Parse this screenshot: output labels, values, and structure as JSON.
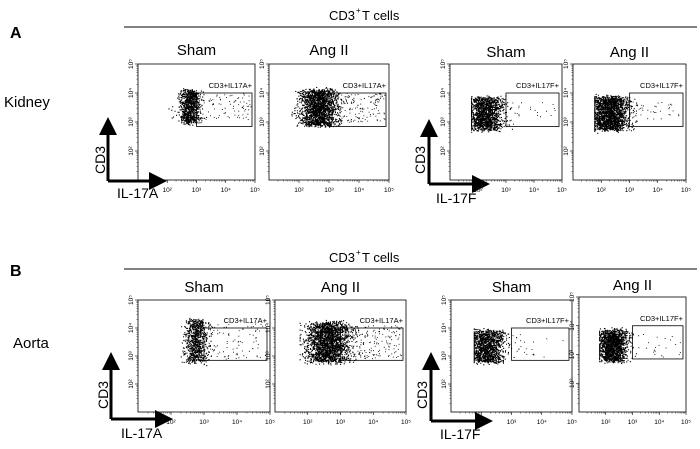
{
  "figure": {
    "panels": [
      {
        "letter": "A",
        "header": "CD3",
        "header_sup": "+",
        "header_tail": " T cells",
        "tissue": "Kidney",
        "cd3_label_a": "CD3",
        "cd3_label_f": "CD3",
        "x_label_a": "IL-17A",
        "x_label_f": "IL-17F"
      },
      {
        "letter": "B",
        "header": "CD3",
        "header_sup": "+",
        "header_tail": " T cells",
        "tissue": "Aorta",
        "cd3_label_a": "CD3",
        "cd3_label_f": "CD3",
        "x_label_a": "IL-17A",
        "x_label_f": "IL-17F"
      }
    ]
  },
  "chart_data": [
    {
      "type": "scatter",
      "panel": "A",
      "tissue": "Kidney",
      "title": "Sham",
      "gate_label": "CD3+IL17A+",
      "xlabel": "IL-17A",
      "ylabel": "CD3",
      "x_axis": "log",
      "y_axis": "log",
      "xlim": [
        10,
        100000
      ],
      "ylim": [
        10,
        100000
      ],
      "x_ticks": [
        "10²",
        "10³",
        "10⁴",
        "10⁵"
      ],
      "y_ticks": [
        "10⁵",
        "10⁴",
        "10³",
        "10²"
      ],
      "gate_x": [
        1000,
        100000
      ],
      "gate_y": [
        700,
        10000
      ]
    },
    {
      "type": "scatter",
      "panel": "A",
      "tissue": "Kidney",
      "title": "Ang II",
      "gate_label": "CD3+IL17A+",
      "xlabel": "IL-17A",
      "ylabel": "CD3",
      "x_axis": "log",
      "y_axis": "log",
      "xlim": [
        10,
        100000
      ],
      "ylim": [
        10,
        100000
      ],
      "x_ticks": [
        "10²",
        "10³",
        "10⁴",
        "10⁵"
      ],
      "y_ticks": [
        "10⁵",
        "10⁴",
        "10³",
        "10²"
      ],
      "gate_x": [
        1000,
        100000
      ],
      "gate_y": [
        700,
        10000
      ]
    },
    {
      "type": "scatter",
      "panel": "A",
      "tissue": "Kidney",
      "title": "Sham",
      "gate_label": "CD3+IL17F+",
      "xlabel": "IL-17F",
      "ylabel": "CD3",
      "x_axis": "log",
      "y_axis": "log",
      "xlim": [
        10,
        100000
      ],
      "ylim": [
        10,
        100000
      ],
      "x_ticks": [
        "10²",
        "10³",
        "10⁴",
        "10⁵"
      ],
      "y_ticks": [
        "10⁵",
        "10⁴",
        "10³",
        "10²"
      ],
      "gate_x": [
        1000,
        100000
      ],
      "gate_y": [
        700,
        10000
      ]
    },
    {
      "type": "scatter",
      "panel": "A",
      "tissue": "Kidney",
      "title": "Ang II",
      "gate_label": "CD3+IL17F+",
      "xlabel": "IL-17F",
      "ylabel": "CD3",
      "x_axis": "log",
      "y_axis": "log",
      "xlim": [
        10,
        100000
      ],
      "ylim": [
        10,
        100000
      ],
      "x_ticks": [
        "10²",
        "10³",
        "10⁴",
        "10⁵"
      ],
      "y_ticks": [
        "10⁵",
        "10⁴",
        "10³",
        "10²"
      ],
      "gate_x": [
        1000,
        100000
      ],
      "gate_y": [
        700,
        10000
      ]
    },
    {
      "type": "scatter",
      "panel": "B",
      "tissue": "Aorta",
      "title": "Sham",
      "gate_label": "CD3+IL17A+",
      "xlabel": "IL-17A",
      "ylabel": "CD3",
      "x_axis": "log",
      "y_axis": "log",
      "xlim": [
        10,
        100000
      ],
      "ylim": [
        10,
        100000
      ],
      "x_ticks": [
        "10²",
        "10³",
        "10⁴",
        "10⁵"
      ],
      "y_ticks": [
        "10⁵",
        "10⁴",
        "10³",
        "10²"
      ],
      "gate_x": [
        1000,
        100000
      ],
      "gate_y": [
        700,
        10000
      ]
    },
    {
      "type": "scatter",
      "panel": "B",
      "tissue": "Aorta",
      "title": "Ang II",
      "gate_label": "CD3+IL17A+",
      "xlabel": "IL-17A",
      "ylabel": "CD3",
      "x_axis": "log",
      "y_axis": "log",
      "xlim": [
        10,
        100000
      ],
      "ylim": [
        10,
        100000
      ],
      "x_ticks": [
        "10²",
        "10³",
        "10⁴",
        "10⁵"
      ],
      "y_ticks": [
        "10⁵",
        "10⁴",
        "10³",
        "10²"
      ],
      "gate_x": [
        1000,
        100000
      ],
      "gate_y": [
        700,
        10000
      ]
    },
    {
      "type": "scatter",
      "panel": "B",
      "tissue": "Aorta",
      "title": "Sham",
      "gate_label": "CD3+IL17F+",
      "xlabel": "IL-17F",
      "ylabel": "CD3",
      "x_axis": "log",
      "y_axis": "log",
      "xlim": [
        10,
        100000
      ],
      "ylim": [
        10,
        100000
      ],
      "x_ticks": [
        "10²",
        "10³",
        "10⁴",
        "10⁵"
      ],
      "y_ticks": [
        "10⁵",
        "10⁴",
        "10³",
        "10²"
      ],
      "gate_x": [
        1000,
        100000
      ],
      "gate_y": [
        700,
        10000
      ]
    },
    {
      "type": "scatter",
      "panel": "B",
      "tissue": "Aorta",
      "title": "Ang II",
      "gate_label": "CD3+IL17F+",
      "xlabel": "IL-17F",
      "ylabel": "CD3",
      "x_axis": "log",
      "y_axis": "log",
      "xlim": [
        10,
        100000
      ],
      "ylim": [
        10,
        100000
      ],
      "x_ticks": [
        "10²",
        "10³",
        "10⁴",
        "10⁵"
      ],
      "y_ticks": [
        "10⁵",
        "10⁴",
        "10³",
        "10²"
      ],
      "gate_x": [
        1000,
        100000
      ],
      "gate_y": [
        700,
        10000
      ]
    }
  ]
}
